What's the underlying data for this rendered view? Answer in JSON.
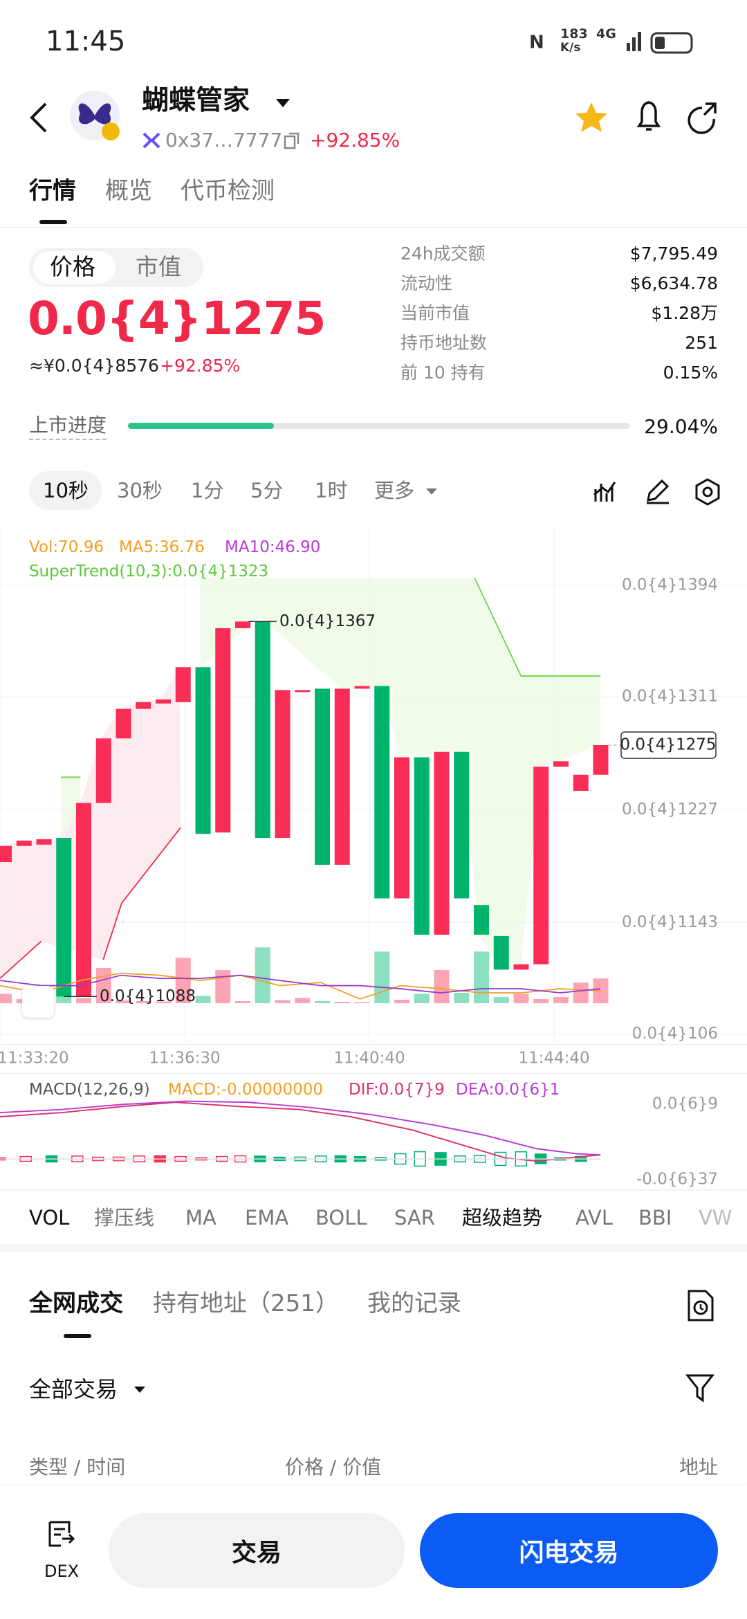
{
  "status_bar": {
    "time": "11:45",
    "speed": "183",
    "speed_unit": "K/s",
    "network": "4G"
  },
  "header": {
    "name": "蝴蝶管家",
    "address": "0x37…7777",
    "change": "+92.85%"
  },
  "tabs": [
    "行情",
    "概览",
    "代币检测"
  ],
  "price_panel": {
    "toggle": [
      "价格",
      "市值"
    ],
    "price": "0.0{4}1275",
    "cny": "≈¥0.0{4}8576",
    "change": "+92.85%"
  },
  "stats": [
    [
      "24h成交额",
      "$7,795.49"
    ],
    [
      "流动性",
      "$6,634.78"
    ],
    [
      "当前市值",
      "$1.28万"
    ],
    [
      "持币地址数",
      "251"
    ],
    [
      "前 10 持有",
      "0.15%"
    ]
  ],
  "listing": {
    "label": "上市进度",
    "progress": 29.04,
    "progress_label": "29.04%"
  },
  "intervals": [
    "10秒",
    "30秒",
    "1分",
    "5分",
    "1时",
    "更多"
  ],
  "kline": {
    "legend": [
      "Vol:70.96",
      "MA5:36.76",
      "MA10:46.90"
    ],
    "supertrend": "SuperTrend(10,3):0.0{4}1323",
    "ylim": [
      1.06e-05,
      1.394e-05
    ],
    "yticks": [
      {
        "value": 1.394e-05,
        "label": "0.0{4}1394"
      },
      {
        "value": 1.311e-05,
        "label": "0.0{4}1311"
      },
      {
        "value": 1.227e-05,
        "label": "0.0{4}1227"
      },
      {
        "value": 1.143e-05,
        "label": "0.0{4}1143"
      },
      {
        "value": 1.06e-05,
        "label": "0.0{4}106"
      }
    ],
    "last_price": {
      "value": 1.275e-05,
      "label": "0.0{4}1275"
    },
    "high_label": {
      "value": 1.367e-05,
      "label": "0.0{4}1367"
    },
    "low_label": {
      "value": 1.088e-05,
      "label": "0.0{4}1088"
    },
    "xticks": [
      "11:33:20",
      "11:36:30",
      "11:40:40",
      "11:44:40"
    ],
    "candles": [
      [
        1.188e-05,
        1.2e-05
      ],
      [
        1.2e-05,
        1.204e-05
      ],
      [
        1.201e-05,
        1.205e-05
      ],
      [
        1.206e-05,
        1.088e-05
      ],
      [
        1.088e-05,
        1.232e-05
      ],
      [
        1.232e-05,
        1.28e-05
      ],
      [
        1.28e-05,
        1.302e-05
      ],
      [
        1.302e-05,
        1.307e-05
      ],
      [
        1.306e-05,
        1.309e-05
      ],
      [
        1.307e-05,
        1.333e-05
      ],
      [
        1.333e-05,
        1.209e-05
      ],
      [
        1.21e-05,
        1.362e-05
      ],
      [
        1.362e-05,
        1.367e-05
      ],
      [
        1.367e-05,
        1.206e-05
      ],
      [
        1.206e-05,
        1.316e-05
      ],
      [
        1.315e-05,
        1.316e-05
      ],
      [
        1.317e-05,
        1.186e-05
      ],
      [
        1.186e-05,
        1.317e-05
      ],
      [
        1.317e-05,
        1.319e-05
      ],
      [
        1.319e-05,
        1.161e-05
      ],
      [
        1.161e-05,
        1.266e-05
      ],
      [
        1.266e-05,
        1.134e-05
      ],
      [
        1.134e-05,
        1.27e-05
      ],
      [
        1.27e-05,
        1.161e-05
      ],
      [
        1.156e-05,
        1.134e-05
      ],
      [
        1.133e-05,
        1.108e-05
      ],
      [
        1.108e-05,
        1.112e-05
      ],
      [
        1.112e-05,
        1.259e-05
      ],
      [
        1.259e-05,
        1.263e-05
      ],
      [
        1.241e-05,
        1.253e-05
      ],
      [
        1.253e-05,
        1.275e-05
      ]
    ],
    "volume": [
      27,
      12,
      9,
      21,
      15,
      101,
      8,
      6,
      5,
      130,
      21,
      95,
      6,
      160,
      9,
      15,
      6,
      4,
      3,
      148,
      10,
      27,
      95,
      30,
      148,
      18,
      27,
      12,
      18,
      59,
      70.96
    ]
  },
  "macd": {
    "legend": [
      "MACD(12,26,9)",
      "MACD:-0.00000000",
      "DIF:0.0{7}9",
      "DEA:0.0{6}1"
    ],
    "ylim": [
      -3.7e-07,
      9e-07
    ],
    "yticks": [
      {
        "value": 9e-07,
        "label": "0.0{6}9"
      },
      {
        "value": -3.7e-07,
        "label": "-0.0{6}37"
      }
    ]
  },
  "indicators": [
    "VOL",
    "撑压线",
    "MA",
    "EMA",
    "BOLL",
    "SAR",
    "超级趋势",
    "AVL",
    "BBI",
    "VW"
  ],
  "trades": {
    "tabs": [
      "全网成交",
      "持有地址（251）",
      "我的记录"
    ],
    "filter": "全部交易",
    "columns": [
      "类型 / 时间",
      "价格 / 价值",
      "地址"
    ]
  },
  "bottom_bar": {
    "dex": "DEX",
    "trade": "交易",
    "flash_trade": "闪电交易"
  }
}
